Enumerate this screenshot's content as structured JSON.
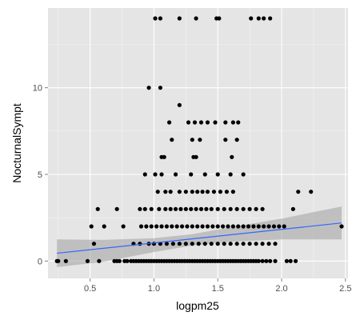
{
  "chart_data": {
    "type": "scatter",
    "title": "",
    "xlabel": "logpm25",
    "ylabel": "NocturnalSympt",
    "xlim": [
      0.17,
      2.52
    ],
    "ylim": [
      -1.0,
      14.6
    ],
    "x_ticks": [
      0.5,
      1.0,
      1.5,
      2.0,
      2.5
    ],
    "x_tick_labels": [
      "0.5",
      "1.0",
      "1.5",
      "2.0",
      "2.5"
    ],
    "y_ticks": [
      0,
      5,
      10
    ],
    "y_tick_labels": [
      "0",
      "5",
      "10"
    ],
    "grid": true,
    "legend": "none",
    "colors": {
      "panel": "#e5e5e5",
      "grid_major": "#ffffff",
      "grid_minor": "#f2f2f2",
      "points": "#000000",
      "fit_line": "#3366ff",
      "ribbon": "#999999"
    },
    "points": [
      [
        0.24,
        0
      ],
      [
        0.25,
        0
      ],
      [
        0.31,
        0
      ],
      [
        0.48,
        0
      ],
      [
        0.57,
        0
      ],
      [
        0.69,
        0
      ],
      [
        0.71,
        0
      ],
      [
        0.73,
        0
      ],
      [
        0.77,
        0
      ],
      [
        0.79,
        0
      ],
      [
        0.82,
        0
      ],
      [
        0.84,
        0
      ],
      [
        0.86,
        0
      ],
      [
        0.88,
        0
      ],
      [
        0.9,
        0
      ],
      [
        0.92,
        0
      ],
      [
        0.94,
        0
      ],
      [
        0.96,
        0
      ],
      [
        0.98,
        0
      ],
      [
        1.0,
        0
      ],
      [
        1.02,
        0
      ],
      [
        1.04,
        0
      ],
      [
        1.06,
        0
      ],
      [
        1.08,
        0
      ],
      [
        1.1,
        0
      ],
      [
        1.12,
        0
      ],
      [
        1.14,
        0
      ],
      [
        1.16,
        0
      ],
      [
        1.18,
        0
      ],
      [
        1.2,
        0
      ],
      [
        1.22,
        0
      ],
      [
        1.24,
        0
      ],
      [
        1.26,
        0
      ],
      [
        1.28,
        0
      ],
      [
        1.3,
        0
      ],
      [
        1.32,
        0
      ],
      [
        1.34,
        0
      ],
      [
        1.36,
        0
      ],
      [
        1.38,
        0
      ],
      [
        1.4,
        0
      ],
      [
        1.42,
        0
      ],
      [
        1.44,
        0
      ],
      [
        1.46,
        0
      ],
      [
        1.48,
        0
      ],
      [
        1.5,
        0
      ],
      [
        1.52,
        0
      ],
      [
        1.54,
        0
      ],
      [
        1.56,
        0
      ],
      [
        1.58,
        0
      ],
      [
        1.6,
        0
      ],
      [
        1.62,
        0
      ],
      [
        1.64,
        0
      ],
      [
        1.66,
        0
      ],
      [
        1.68,
        0
      ],
      [
        1.7,
        0
      ],
      [
        1.72,
        0
      ],
      [
        1.74,
        0
      ],
      [
        1.76,
        0
      ],
      [
        1.78,
        0
      ],
      [
        1.8,
        0
      ],
      [
        1.82,
        0
      ],
      [
        1.85,
        0
      ],
      [
        1.88,
        0
      ],
      [
        1.91,
        0
      ],
      [
        1.95,
        0
      ],
      [
        2.04,
        0
      ],
      [
        2.07,
        0
      ],
      [
        2.11,
        0
      ],
      [
        0.53,
        1
      ],
      [
        0.84,
        1
      ],
      [
        0.89,
        1
      ],
      [
        0.96,
        1
      ],
      [
        1.0,
        1
      ],
      [
        1.05,
        1
      ],
      [
        1.1,
        1
      ],
      [
        1.15,
        1
      ],
      [
        1.2,
        1
      ],
      [
        1.25,
        1
      ],
      [
        1.3,
        1
      ],
      [
        1.35,
        1
      ],
      [
        1.4,
        1
      ],
      [
        1.45,
        1
      ],
      [
        1.5,
        1
      ],
      [
        1.55,
        1
      ],
      [
        1.6,
        1
      ],
      [
        1.65,
        1
      ],
      [
        1.7,
        1
      ],
      [
        1.75,
        1
      ],
      [
        1.8,
        1
      ],
      [
        1.85,
        1
      ],
      [
        1.9,
        1
      ],
      [
        1.95,
        1
      ],
      [
        0.51,
        2
      ],
      [
        0.61,
        2
      ],
      [
        0.76,
        2
      ],
      [
        0.9,
        2
      ],
      [
        0.94,
        2
      ],
      [
        0.98,
        2
      ],
      [
        1.02,
        2
      ],
      [
        1.06,
        2
      ],
      [
        1.1,
        2
      ],
      [
        1.14,
        2
      ],
      [
        1.18,
        2
      ],
      [
        1.22,
        2
      ],
      [
        1.26,
        2
      ],
      [
        1.3,
        2
      ],
      [
        1.34,
        2
      ],
      [
        1.38,
        2
      ],
      [
        1.42,
        2
      ],
      [
        1.46,
        2
      ],
      [
        1.5,
        2
      ],
      [
        1.54,
        2
      ],
      [
        1.58,
        2
      ],
      [
        1.62,
        2
      ],
      [
        1.66,
        2
      ],
      [
        1.7,
        2
      ],
      [
        1.74,
        2
      ],
      [
        1.78,
        2
      ],
      [
        1.82,
        2
      ],
      [
        1.86,
        2
      ],
      [
        1.9,
        2
      ],
      [
        1.94,
        2
      ],
      [
        1.98,
        2
      ],
      [
        2.02,
        2
      ],
      [
        2.47,
        2
      ],
      [
        0.56,
        3
      ],
      [
        0.71,
        3
      ],
      [
        0.89,
        3
      ],
      [
        0.93,
        3
      ],
      [
        0.98,
        3
      ],
      [
        1.04,
        3
      ],
      [
        1.09,
        3
      ],
      [
        1.13,
        3
      ],
      [
        1.17,
        3
      ],
      [
        1.21,
        3
      ],
      [
        1.25,
        3
      ],
      [
        1.29,
        3
      ],
      [
        1.33,
        3
      ],
      [
        1.37,
        3
      ],
      [
        1.41,
        3
      ],
      [
        1.45,
        3
      ],
      [
        1.5,
        3
      ],
      [
        1.55,
        3
      ],
      [
        1.6,
        3
      ],
      [
        1.65,
        3
      ],
      [
        1.7,
        3
      ],
      [
        1.75,
        3
      ],
      [
        1.8,
        3
      ],
      [
        1.85,
        3
      ],
      [
        2.09,
        3
      ],
      [
        1.03,
        4
      ],
      [
        1.09,
        4
      ],
      [
        1.13,
        4
      ],
      [
        1.2,
        4
      ],
      [
        1.25,
        4
      ],
      [
        1.3,
        4
      ],
      [
        1.34,
        4
      ],
      [
        1.38,
        4
      ],
      [
        1.42,
        4
      ],
      [
        1.47,
        4
      ],
      [
        1.52,
        4
      ],
      [
        1.57,
        4
      ],
      [
        1.62,
        4
      ],
      [
        2.13,
        4
      ],
      [
        2.23,
        4
      ],
      [
        0.93,
        5
      ],
      [
        1.01,
        5
      ],
      [
        1.06,
        5
      ],
      [
        1.17,
        5
      ],
      [
        1.29,
        5
      ],
      [
        1.4,
        5
      ],
      [
        1.5,
        5
      ],
      [
        1.6,
        5
      ],
      [
        1.7,
        5
      ],
      [
        1.06,
        6
      ],
      [
        1.08,
        6
      ],
      [
        1.31,
        6
      ],
      [
        1.33,
        6
      ],
      [
        1.61,
        6
      ],
      [
        1.14,
        7
      ],
      [
        1.3,
        7
      ],
      [
        1.36,
        7
      ],
      [
        1.56,
        7
      ],
      [
        1.65,
        7
      ],
      [
        1.12,
        8
      ],
      [
        1.27,
        8
      ],
      [
        1.32,
        8
      ],
      [
        1.37,
        8
      ],
      [
        1.42,
        8
      ],
      [
        1.48,
        8
      ],
      [
        1.56,
        8
      ],
      [
        1.62,
        8
      ],
      [
        1.66,
        8
      ],
      [
        1.2,
        9
      ],
      [
        0.96,
        10
      ],
      [
        1.05,
        10
      ],
      [
        1.01,
        14
      ],
      [
        1.05,
        14
      ],
      [
        1.2,
        14
      ],
      [
        1.33,
        14
      ],
      [
        1.49,
        14
      ],
      [
        1.51,
        14
      ],
      [
        1.76,
        14
      ],
      [
        1.82,
        14
      ],
      [
        1.86,
        14
      ],
      [
        1.91,
        14
      ]
    ],
    "fit_line": {
      "x": [
        0.24,
        2.47
      ],
      "y": [
        0.45,
        2.2
      ]
    },
    "confidence_band": {
      "x": [
        0.24,
        0.6,
        1.0,
        1.3,
        1.6,
        2.0,
        2.47
      ],
      "upper": [
        1.25,
        1.22,
        1.32,
        1.55,
        1.95,
        2.45,
        3.15
      ],
      "lower": [
        -0.35,
        -0.05,
        0.52,
        0.9,
        1.12,
        1.25,
        1.25
      ]
    }
  }
}
